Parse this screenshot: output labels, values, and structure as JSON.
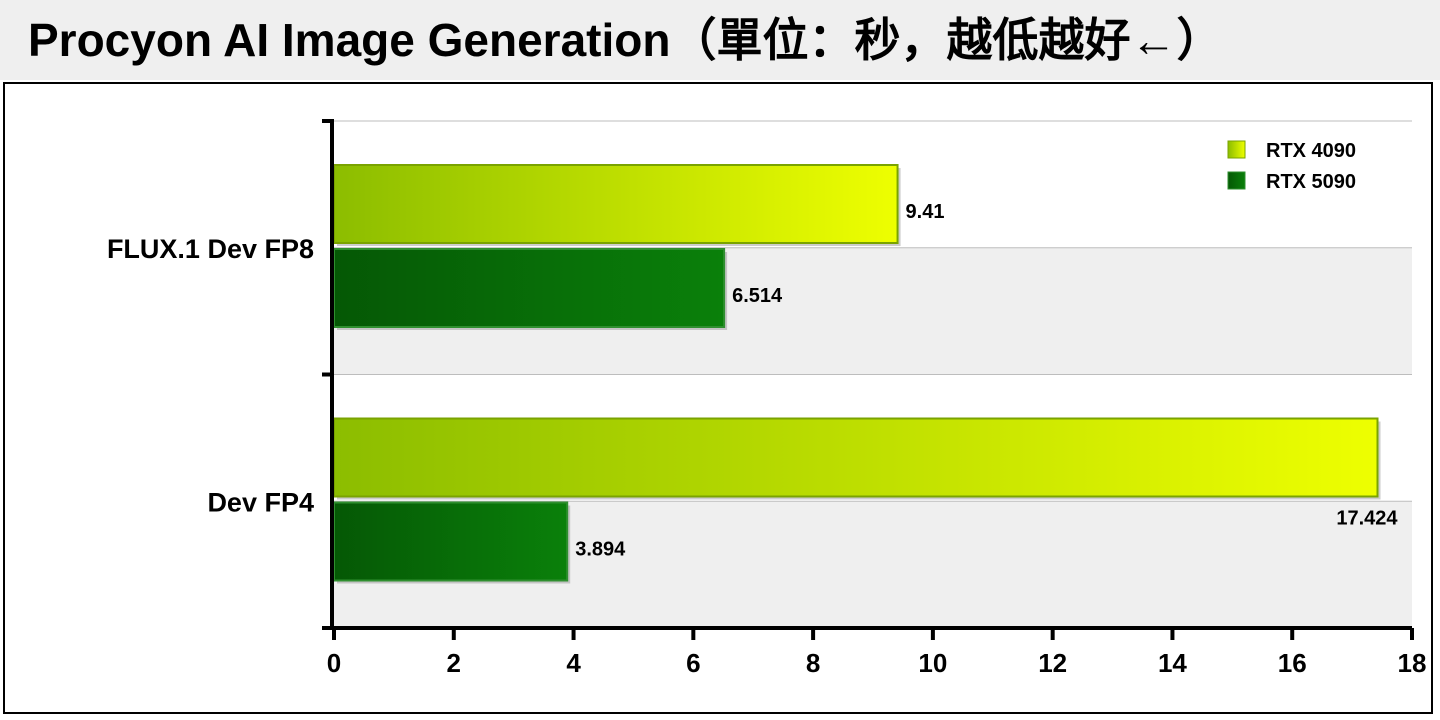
{
  "title": "Procyon AI Image Generation（單位：秒，越低越好←）",
  "colors": {
    "rtx4090_start": "#8cbd00",
    "rtx4090_end": "#eeff00",
    "rtx5090_start": "#055805",
    "rtx5090_end": "#0a800a",
    "band_alt": "#efefef",
    "grid": "#bdbdbd"
  },
  "chart_data": {
    "type": "bar",
    "orientation": "horizontal",
    "title": "Procyon AI Image Generation（單位：秒，越低越好←）",
    "categories": [
      "FLUX.1 Dev FP8",
      "Dev FP4"
    ],
    "series": [
      {
        "name": "RTX 4090",
        "values": [
          9.41,
          17.424
        ],
        "labels": [
          "9.41",
          "17.424"
        ]
      },
      {
        "name": "RTX 5090",
        "values": [
          6.514,
          3.894
        ],
        "labels": [
          "6.514",
          "3.894"
        ]
      }
    ],
    "xlim": [
      0,
      18
    ],
    "xticks": [
      0,
      2,
      4,
      6,
      8,
      10,
      12,
      14,
      16,
      18
    ],
    "xlabel": "",
    "ylabel": "",
    "grid": true,
    "legend": "top-right"
  }
}
